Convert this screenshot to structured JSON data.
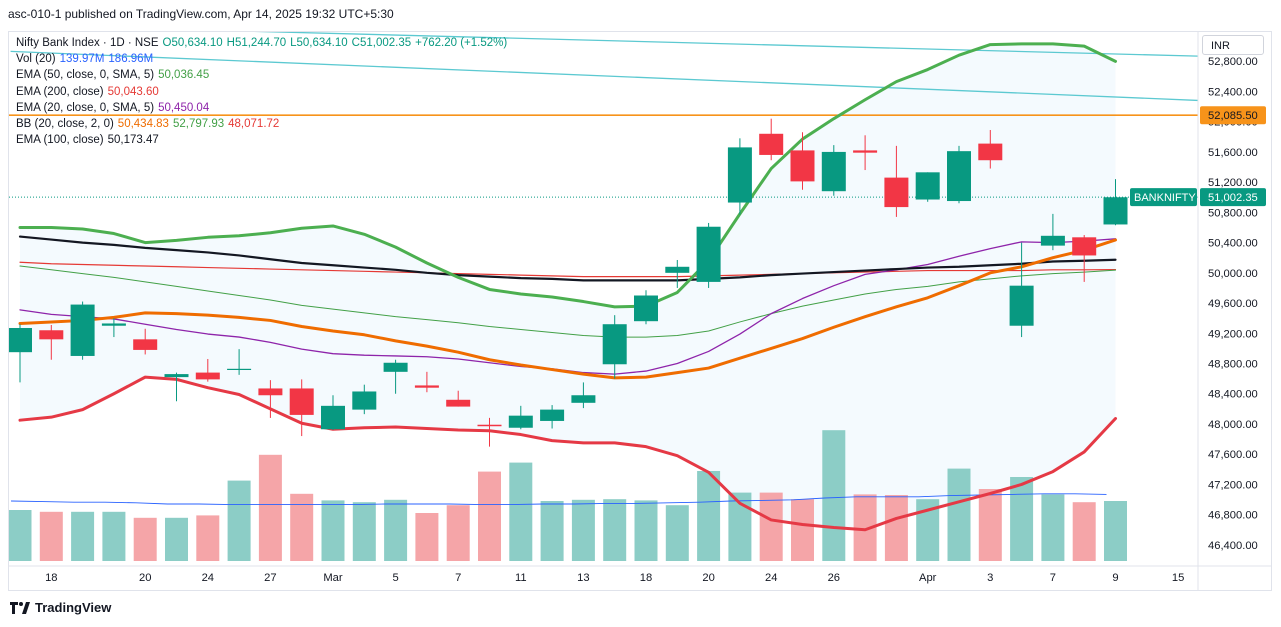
{
  "header": "asc-010-1 published on TradingView.com, Apr 14, 2025 19:32 UTC+5:30",
  "footer_brand": "TradingView",
  "currency_label": "INR",
  "legend": [
    {
      "name": "Nifty Bank Index · 1D · NSE",
      "values": [
        "O50,634.10",
        "H51,244.70",
        "L50,634.10",
        "C51,002.35",
        "+762.20 (+1.52%)"
      ],
      "color": "#089981"
    },
    {
      "name": "Vol (20)",
      "values": [
        "139.97M",
        "186.96M"
      ],
      "color": "#2962ff"
    },
    {
      "name": "EMA (50, close, 0, SMA, 5)",
      "values": [
        "50,036.45"
      ],
      "color": "#43a047"
    },
    {
      "name": "EMA (200, close)",
      "values": [
        "50,043.60"
      ],
      "color": "#e53935"
    },
    {
      "name": "EMA (20, close, 0, SMA, 5)",
      "values": [
        "50,450.04"
      ],
      "color": "#8e24aa"
    },
    {
      "name": "BB (20, close, 2, 0)",
      "values": [
        "50,434.83",
        "52,797.93",
        "48,071.72"
      ],
      "color": "#ef6c00"
    },
    {
      "name": "EMA (100, close)",
      "values": [
        "50,173.47"
      ],
      "color": "#131722"
    }
  ],
  "chart_data": {
    "type": "candlestick",
    "symbol": "BANKNIFTY",
    "ylim": [
      46200,
      53200
    ],
    "y_ticks": [
      46400,
      46800,
      47200,
      47600,
      48000,
      48400,
      48800,
      49200,
      49600,
      50000,
      50400,
      50800,
      51200,
      51600,
      52000,
      52400,
      52800
    ],
    "y_tick_labels": [
      "46,400.00",
      "46,800.00",
      "47,200.00",
      "47,600.00",
      "48,000.00",
      "48,400.00",
      "48,800.00",
      "49,200.00",
      "49,600.00",
      "50,000.00",
      "50,400.00",
      "50,800.00",
      "51,200.00",
      "51,600.00",
      "52,000.00",
      "52,400.00",
      "52,800.00"
    ],
    "x_tick_labels": [
      {
        "i": 1,
        "label": "18"
      },
      {
        "i": 4,
        "label": "20"
      },
      {
        "i": 6,
        "label": "24"
      },
      {
        "i": 8,
        "label": "27"
      },
      {
        "i": 10,
        "label": "Mar"
      },
      {
        "i": 12,
        "label": "5"
      },
      {
        "i": 14,
        "label": "7"
      },
      {
        "i": 16,
        "label": "11"
      },
      {
        "i": 18,
        "label": "13"
      },
      {
        "i": 20,
        "label": "18"
      },
      {
        "i": 22,
        "label": "20"
      },
      {
        "i": 24,
        "label": "24"
      },
      {
        "i": 26,
        "label": "26"
      },
      {
        "i": 29,
        "label": "Apr"
      },
      {
        "i": 31,
        "label": "3"
      },
      {
        "i": 33,
        "label": "7"
      },
      {
        "i": 35,
        "label": "9"
      },
      {
        "i": 37,
        "label": "15"
      }
    ],
    "candles": [
      {
        "o": 48950,
        "h": 49320,
        "l": 48550,
        "c": 49270,
        "v": 85
      },
      {
        "o": 49240,
        "h": 49310,
        "l": 48850,
        "c": 49120,
        "v": 82
      },
      {
        "o": 48900,
        "h": 49620,
        "l": 48850,
        "c": 49580,
        "v": 82
      },
      {
        "o": 49300,
        "h": 49400,
        "l": 49150,
        "c": 49330,
        "v": 82
      },
      {
        "o": 49120,
        "h": 49260,
        "l": 48920,
        "c": 48980,
        "v": 72
      },
      {
        "o": 48620,
        "h": 48680,
        "l": 48300,
        "c": 48660,
        "v": 72
      },
      {
        "o": 48680,
        "h": 48860,
        "l": 48560,
        "c": 48590,
        "v": 76
      },
      {
        "o": 48720,
        "h": 48990,
        "l": 48650,
        "c": 48730,
        "v": 134
      },
      {
        "o": 48470,
        "h": 48580,
        "l": 48080,
        "c": 48380,
        "v": 177
      },
      {
        "o": 48470,
        "h": 48590,
        "l": 47840,
        "c": 48120,
        "v": 112
      },
      {
        "o": 47930,
        "h": 48380,
        "l": 47920,
        "c": 48240,
        "v": 101
      },
      {
        "o": 48190,
        "h": 48520,
        "l": 48130,
        "c": 48430,
        "v": 98
      },
      {
        "o": 48690,
        "h": 48850,
        "l": 48400,
        "c": 48810,
        "v": 102
      },
      {
        "o": 48510,
        "h": 48690,
        "l": 48420,
        "c": 48480,
        "v": 80
      },
      {
        "o": 48320,
        "h": 48440,
        "l": 48230,
        "c": 48230,
        "v": 93
      },
      {
        "o": 47990,
        "h": 48080,
        "l": 47700,
        "c": 47970,
        "v": 149
      },
      {
        "o": 47950,
        "h": 48240,
        "l": 47930,
        "c": 48110,
        "v": 164
      },
      {
        "o": 48040,
        "h": 48250,
        "l": 47940,
        "c": 48190,
        "v": 100
      },
      {
        "o": 48280,
        "h": 48550,
        "l": 48210,
        "c": 48380,
        "v": 102
      },
      {
        "o": 48790,
        "h": 49440,
        "l": 48600,
        "c": 49320,
        "v": 103
      },
      {
        "o": 49360,
        "h": 49770,
        "l": 49320,
        "c": 49700,
        "v": 101
      },
      {
        "o": 50000,
        "h": 50170,
        "l": 49800,
        "c": 50080,
        "v": 93
      },
      {
        "o": 49880,
        "h": 50660,
        "l": 49800,
        "c": 50610,
        "v": 150
      },
      {
        "o": 50930,
        "h": 51780,
        "l": 50770,
        "c": 51660,
        "v": 114
      },
      {
        "o": 51840,
        "h": 52040,
        "l": 51490,
        "c": 51560,
        "v": 114
      },
      {
        "o": 51620,
        "h": 51860,
        "l": 51100,
        "c": 51210,
        "v": 103
      },
      {
        "o": 51080,
        "h": 51690,
        "l": 51020,
        "c": 51600,
        "v": 218
      },
      {
        "o": 51620,
        "h": 51820,
        "l": 51360,
        "c": 51590,
        "v": 111
      },
      {
        "o": 51260,
        "h": 51680,
        "l": 50740,
        "c": 50870,
        "v": 110
      },
      {
        "o": 50970,
        "h": 51330,
        "l": 50940,
        "c": 51330,
        "v": 103
      },
      {
        "o": 50950,
        "h": 51680,
        "l": 50920,
        "c": 51610,
        "v": 154
      },
      {
        "o": 51710,
        "h": 51890,
        "l": 51380,
        "c": 51490,
        "v": 120
      },
      {
        "o": 49300,
        "h": 50400,
        "l": 49150,
        "c": 49830,
        "v": 140
      },
      {
        "o": 50360,
        "h": 50780,
        "l": 50300,
        "c": 50490,
        "v": 111
      },
      {
        "o": 50470,
        "h": 50500,
        "l": 49880,
        "c": 50230,
        "v": 98
      },
      {
        "o": 50640,
        "h": 51240,
        "l": 50630,
        "c": 51000,
        "v": 100
      }
    ],
    "volume_ma": [
      100,
      99,
      98,
      98,
      97,
      95,
      95,
      94,
      94,
      94,
      94,
      94,
      95,
      95,
      95,
      94,
      94,
      95,
      95,
      96,
      96,
      97,
      98,
      100,
      101,
      102,
      105,
      107,
      107,
      107,
      109,
      110,
      111,
      112,
      112,
      111
    ],
    "series": [
      {
        "name": "EMA 50",
        "color": "#43a047",
        "width": 1,
        "values": [
          50090,
          50040,
          49990,
          49940,
          49880,
          49820,
          49760,
          49700,
          49640,
          49570,
          49520,
          49470,
          49420,
          49380,
          49340,
          49290,
          49250,
          49210,
          49170,
          49150,
          49150,
          49170,
          49230,
          49350,
          49460,
          49560,
          49640,
          49720,
          49780,
          49820,
          49880,
          49920,
          49960,
          49990,
          50010,
          50036
        ]
      },
      {
        "name": "EMA 100",
        "color": "#131722",
        "width": 2.2,
        "values": [
          50480,
          50440,
          50400,
          50370,
          50330,
          50300,
          50270,
          50230,
          50180,
          50130,
          50100,
          50070,
          50040,
          50000,
          49970,
          49950,
          49930,
          49920,
          49900,
          49900,
          49900,
          49900,
          49920,
          49940,
          49970,
          49990,
          50010,
          50030,
          50050,
          50070,
          50080,
          50100,
          50120,
          50150,
          50160,
          50173
        ]
      },
      {
        "name": "EMA 200",
        "color": "#e53935",
        "width": 1.2,
        "values": [
          50140,
          50120,
          50110,
          50100,
          50090,
          50080,
          50070,
          50060,
          50050,
          50040,
          50030,
          50020,
          50010,
          50000,
          49990,
          49980,
          49970,
          49960,
          49950,
          49950,
          49950,
          49950,
          49960,
          49970,
          49980,
          49990,
          50000,
          50010,
          50020,
          50030,
          50030,
          50030,
          50030,
          50040,
          50040,
          50043
        ]
      },
      {
        "name": "EMA 20",
        "color": "#8e24aa",
        "width": 1.3,
        "values": [
          49510,
          49450,
          49420,
          49390,
          49320,
          49250,
          49190,
          49150,
          49080,
          48990,
          48930,
          48910,
          48900,
          48890,
          48860,
          48810,
          48760,
          48730,
          48680,
          48660,
          48700,
          48800,
          48960,
          49190,
          49460,
          49660,
          49830,
          49980,
          50040,
          50110,
          50220,
          50320,
          50410,
          50400,
          50420,
          50450
        ]
      },
      {
        "name": "BB basis",
        "color": "#ef6c00",
        "width": 3,
        "values": [
          49330,
          49350,
          49370,
          49410,
          49470,
          49460,
          49440,
          49410,
          49370,
          49290,
          49230,
          49180,
          49100,
          49030,
          48950,
          48850,
          48780,
          48720,
          48660,
          48610,
          48620,
          48680,
          48740,
          48870,
          49000,
          49130,
          49280,
          49420,
          49550,
          49670,
          49830,
          50000,
          50080,
          50200,
          50300,
          50435
        ]
      },
      {
        "name": "BB upper",
        "color": "#4caf50",
        "width": 3,
        "values": [
          50600,
          50600,
          50580,
          50520,
          50400,
          50430,
          50470,
          50490,
          50530,
          50590,
          50620,
          50510,
          50340,
          50130,
          49940,
          49780,
          49720,
          49680,
          49620,
          49550,
          49560,
          49740,
          50160,
          50780,
          51380,
          51770,
          52040,
          52290,
          52530,
          52690,
          52880,
          53020,
          53030,
          53030,
          53000,
          52798
        ]
      },
      {
        "name": "BB lower",
        "color": "#e53945",
        "width": 3,
        "values": [
          48050,
          48090,
          48190,
          48400,
          48620,
          48590,
          48480,
          48390,
          48200,
          48010,
          47930,
          47950,
          47960,
          47940,
          47920,
          47910,
          47860,
          47780,
          47750,
          47750,
          47700,
          47580,
          47360,
          46950,
          46730,
          46670,
          46630,
          46600,
          46750,
          46860,
          46970,
          47080,
          47200,
          47370,
          47630,
          48072
        ]
      }
    ],
    "trendlines": [
      {
        "color": "#5cc9d1",
        "from": {
          "i": -0.3,
          "y": 53280
        },
        "to": {
          "i": 38.3,
          "y": 52860
        }
      },
      {
        "color": "#5cc9d1",
        "from": {
          "i": -0.3,
          "y": 52930
        },
        "to": {
          "i": 38.3,
          "y": 52270
        }
      }
    ],
    "hline": {
      "value": 52085.5,
      "label": "52,085.50",
      "color": "#f7931a"
    },
    "last_price": {
      "value": 51002.35,
      "label": "51,002.35",
      "tag": "BANKNIFTY",
      "color": "#089981"
    }
  }
}
